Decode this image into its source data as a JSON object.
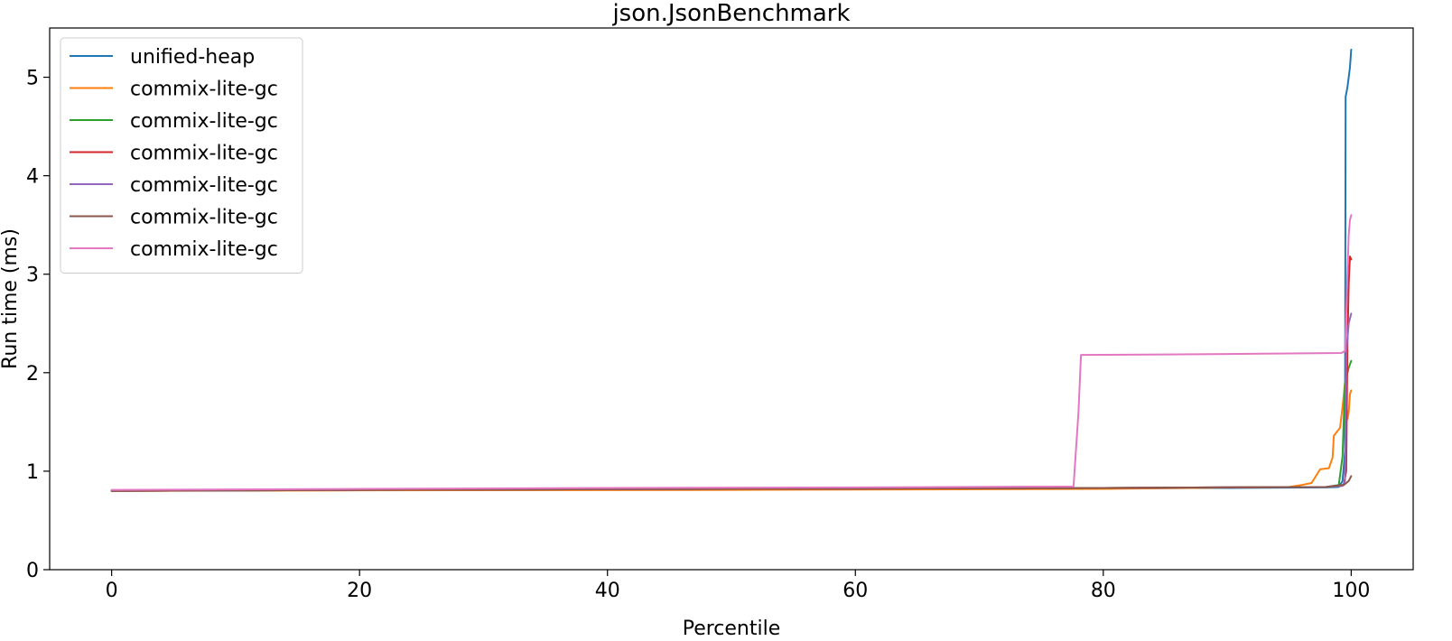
{
  "chart_data": {
    "type": "line",
    "title": "json.JsonBenchmark",
    "xlabel": "Percentile",
    "ylabel": "Run time (ms)",
    "xlim": [
      -5,
      105
    ],
    "ylim": [
      0,
      5.5
    ],
    "xticks": [
      0,
      20,
      40,
      60,
      80,
      100
    ],
    "yticks": [
      0,
      1,
      2,
      3,
      4,
      5
    ],
    "grid": false,
    "legend_position": "top-left",
    "series": [
      {
        "name": "unified-heap",
        "color": "#1f77b4",
        "x": [
          0,
          10,
          30,
          50,
          70,
          90,
          98,
          99,
          99.3,
          99.5,
          99.55,
          99.7,
          99.9,
          100
        ],
        "y": [
          0.8,
          0.81,
          0.815,
          0.82,
          0.825,
          0.83,
          0.835,
          0.84,
          0.9,
          1.2,
          4.8,
          4.9,
          5.1,
          5.28
        ]
      },
      {
        "name": "commix-lite-gc",
        "color": "#ff7f0e",
        "x": [
          0,
          20,
          50,
          80,
          95,
          96,
          96.8,
          97.2,
          97.5,
          98.2,
          98.5,
          98.6,
          99.1,
          99.3,
          99.5,
          99.7,
          99.8,
          99.9,
          100
        ],
        "y": [
          0.8,
          0.805,
          0.81,
          0.82,
          0.84,
          0.86,
          0.88,
          0.96,
          1.02,
          1.03,
          1.14,
          1.36,
          1.44,
          1.65,
          1.9,
          1.53,
          1.6,
          1.78,
          1.82
        ]
      },
      {
        "name": "commix-lite-gc",
        "color": "#2ca02c",
        "x": [
          0,
          20,
          50,
          80,
          98,
          99,
          99.3,
          99.5,
          99.6,
          99.8,
          100
        ],
        "y": [
          0.8,
          0.81,
          0.82,
          0.83,
          0.84,
          0.86,
          1.15,
          1.9,
          1.95,
          2.05,
          2.12
        ]
      },
      {
        "name": "commix-lite-gc",
        "color": "#d62728",
        "x": [
          0,
          20,
          50,
          80,
          98,
          99.4,
          99.6,
          99.7,
          99.8,
          99.9,
          100
        ],
        "y": [
          0.8,
          0.81,
          0.82,
          0.83,
          0.84,
          0.86,
          1.0,
          2.3,
          2.9,
          3.18,
          3.15
        ]
      },
      {
        "name": "commix-lite-gc",
        "color": "#9467bd",
        "x": [
          0,
          20,
          50,
          80,
          98,
          99.3,
          99.5,
          99.6,
          99.8,
          100
        ],
        "y": [
          0.8,
          0.81,
          0.82,
          0.83,
          0.84,
          0.85,
          0.9,
          2.2,
          2.5,
          2.6
        ]
      },
      {
        "name": "commix-lite-gc",
        "color": "#8c564b",
        "x": [
          0,
          20,
          50,
          80,
          98,
          99.4,
          99.6,
          99.8,
          100
        ],
        "y": [
          0.8,
          0.81,
          0.82,
          0.83,
          0.84,
          0.86,
          0.88,
          0.9,
          0.95
        ]
      },
      {
        "name": "commix-lite-gc",
        "color": "#e377c2",
        "x": [
          0,
          20,
          40,
          60,
          77.6,
          78.0,
          78.2,
          85,
          90,
          95,
          99.2,
          99.5,
          99.7,
          99.8,
          99.9,
          100
        ],
        "y": [
          0.81,
          0.82,
          0.83,
          0.835,
          0.845,
          1.6,
          2.18,
          2.185,
          2.19,
          2.195,
          2.2,
          2.22,
          3.0,
          3.4,
          3.55,
          3.6
        ]
      }
    ]
  }
}
